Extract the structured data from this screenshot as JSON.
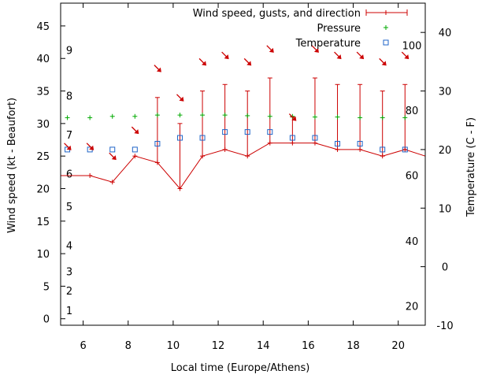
{
  "chart_data": {
    "type": "line",
    "xlabel": "Local time (Europe/Athens)",
    "ylabel_left": "Wind speed (kt - Beaufort)",
    "ylabel_right": "Temperature (C - F)",
    "xlim": [
      5,
      21.2
    ],
    "ylim_left": [
      -1,
      48.5
    ],
    "ylim_right": [
      -10,
      45
    ],
    "x_ticks": [
      6,
      8,
      10,
      12,
      14,
      16,
      18,
      20
    ],
    "y_left_ticks": [
      0,
      5,
      10,
      15,
      20,
      25,
      30,
      35,
      40,
      45
    ],
    "y_right_ticks": [
      -10,
      0,
      10,
      20,
      30,
      40
    ],
    "beaufort_labels": [
      {
        "label": "1",
        "value": 1.3
      },
      {
        "label": "2",
        "value": 4.3
      },
      {
        "label": "3",
        "value": 7.3
      },
      {
        "label": "4",
        "value": 11.3
      },
      {
        "label": "5",
        "value": 17.3
      },
      {
        "label": "6",
        "value": 22.3
      },
      {
        "label": "7",
        "value": 28.3
      },
      {
        "label": "8",
        "value": 34.3
      },
      {
        "label": "9",
        "value": 41.3
      }
    ],
    "fahrenheit_labels": [
      {
        "label": "20",
        "value": -6.7
      },
      {
        "label": "40",
        "value": 4.4
      },
      {
        "label": "60",
        "value": 15.6
      },
      {
        "label": "80",
        "value": 26.7
      },
      {
        "label": "100",
        "value": 37.8
      }
    ],
    "legend": [
      {
        "label": "Wind speed, gusts, and direction",
        "color": "#cc0000",
        "style": "errorbar"
      },
      {
        "label": "Pressure",
        "color": "#00aa00",
        "style": "plus"
      },
      {
        "label": "Temperature",
        "color": "#1f64c8",
        "style": "square"
      }
    ],
    "series": [
      {
        "name": "Wind speed, gusts, and direction",
        "color": "#cc0000",
        "x": [
          5.0,
          6.3,
          7.3,
          8.3,
          9.3,
          10.3,
          11.3,
          12.3,
          13.3,
          14.3,
          15.3,
          16.3,
          17.3,
          18.3,
          19.3,
          20.3,
          21.2
        ],
        "speed": [
          22,
          22,
          21,
          25,
          24,
          20,
          25,
          26,
          25,
          27,
          27,
          27,
          26,
          26,
          25,
          26,
          25
        ],
        "gust": [
          null,
          null,
          null,
          null,
          34,
          30,
          35,
          36,
          35,
          37,
          31,
          37,
          36,
          36,
          35,
          36,
          null
        ]
      },
      {
        "name": "Pressure",
        "color": "#00aa00",
        "x": [
          5.3,
          6.3,
          7.3,
          8.3,
          9.3,
          10.3,
          11.3,
          12.3,
          13.3,
          14.3,
          15.3,
          16.3,
          17.3,
          18.3,
          19.3,
          20.3
        ],
        "values": [
          30.9,
          30.9,
          31.1,
          31.1,
          31.3,
          31.3,
          31.3,
          31.3,
          31.2,
          31.1,
          31.1,
          31.0,
          31.0,
          30.9,
          30.9,
          30.9
        ]
      },
      {
        "name": "Temperature",
        "color": "#1f64c8",
        "x": [
          5.3,
          6.3,
          7.3,
          8.3,
          9.3,
          10.3,
          11.3,
          12.3,
          13.3,
          14.3,
          15.3,
          16.3,
          17.3,
          18.3,
          19.3,
          20.3
        ],
        "values": [
          20,
          20,
          20,
          20,
          21,
          22,
          22,
          23,
          23,
          23,
          22,
          22,
          21,
          21,
          20,
          20
        ]
      },
      {
        "name": "direction",
        "color": "#cc0000",
        "points": [
          {
            "x": 5.3,
            "y": 26.5
          },
          {
            "x": 6.3,
            "y": 26.5
          },
          {
            "x": 7.3,
            "y": 25.0
          },
          {
            "x": 8.3,
            "y": 29.0
          },
          {
            "x": 9.3,
            "y": 38.5
          },
          {
            "x": 10.3,
            "y": 34.0
          },
          {
            "x": 11.3,
            "y": 39.5
          },
          {
            "x": 12.3,
            "y": 40.5
          },
          {
            "x": 13.3,
            "y": 39.5
          },
          {
            "x": 14.3,
            "y": 41.5
          },
          {
            "x": 15.3,
            "y": 31.0
          },
          {
            "x": 16.3,
            "y": 41.5
          },
          {
            "x": 17.3,
            "y": 40.5
          },
          {
            "x": 18.3,
            "y": 40.5
          },
          {
            "x": 19.3,
            "y": 39.5
          },
          {
            "x": 20.3,
            "y": 40.5
          }
        ]
      }
    ]
  }
}
